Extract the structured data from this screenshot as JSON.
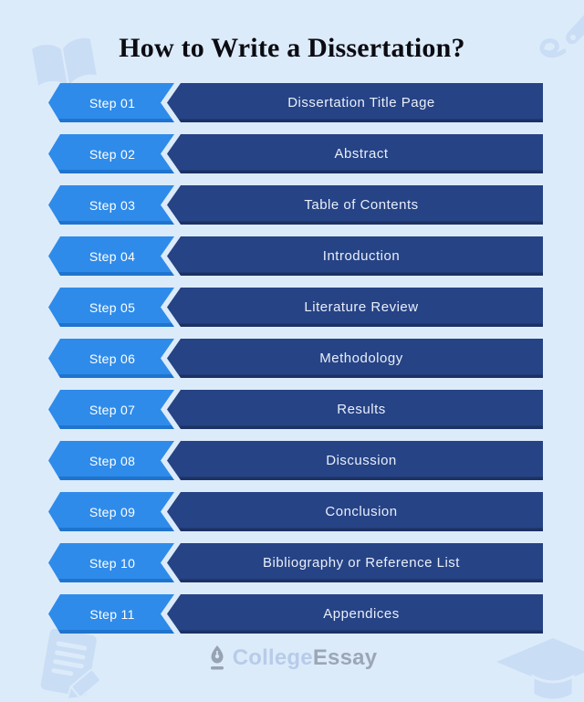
{
  "page": {
    "title": "How to Write a Dissertation?"
  },
  "steps": [
    {
      "step": "Step 01",
      "label": "Dissertation Title Page"
    },
    {
      "step": "Step 02",
      "label": "Abstract"
    },
    {
      "step": "Step 03",
      "label": "Table of Contents"
    },
    {
      "step": "Step 04",
      "label": "Introduction"
    },
    {
      "step": "Step 05",
      "label": "Literature Review"
    },
    {
      "step": "Step 06",
      "label": "Methodology"
    },
    {
      "step": "Step 07",
      "label": "Results"
    },
    {
      "step": "Step 08",
      "label": "Discussion"
    },
    {
      "step": "Step 09",
      "label": "Conclusion"
    },
    {
      "step": "Step 10",
      "label": "Bibliography or Reference List"
    },
    {
      "step": "Step 11",
      "label": "Appendices"
    }
  ],
  "footer": {
    "brand_college": "College",
    "brand_essay": "Essay"
  },
  "icons": {
    "logo": "pen-nib-icon",
    "top_left": "open-book-icon",
    "top_right": "pen-swirl-icon",
    "bottom_left": "document-pencil-icon",
    "bottom_right": "graduation-cap-icon"
  },
  "colors": {
    "background": "#DCEBFA",
    "step_arrow": "#2F8BE9",
    "step_arrow_shadow": "#1E74CE",
    "content_arrow": "#264385",
    "content_arrow_shadow": "#1C3264",
    "title_text": "#0B0B12",
    "banner_text": "#FFFFFF",
    "watermark": "#C9DDF5",
    "logo_college": "#B7CBE9",
    "logo_essay": "#9BA6B6",
    "logo_icon": "#97A3B3"
  }
}
